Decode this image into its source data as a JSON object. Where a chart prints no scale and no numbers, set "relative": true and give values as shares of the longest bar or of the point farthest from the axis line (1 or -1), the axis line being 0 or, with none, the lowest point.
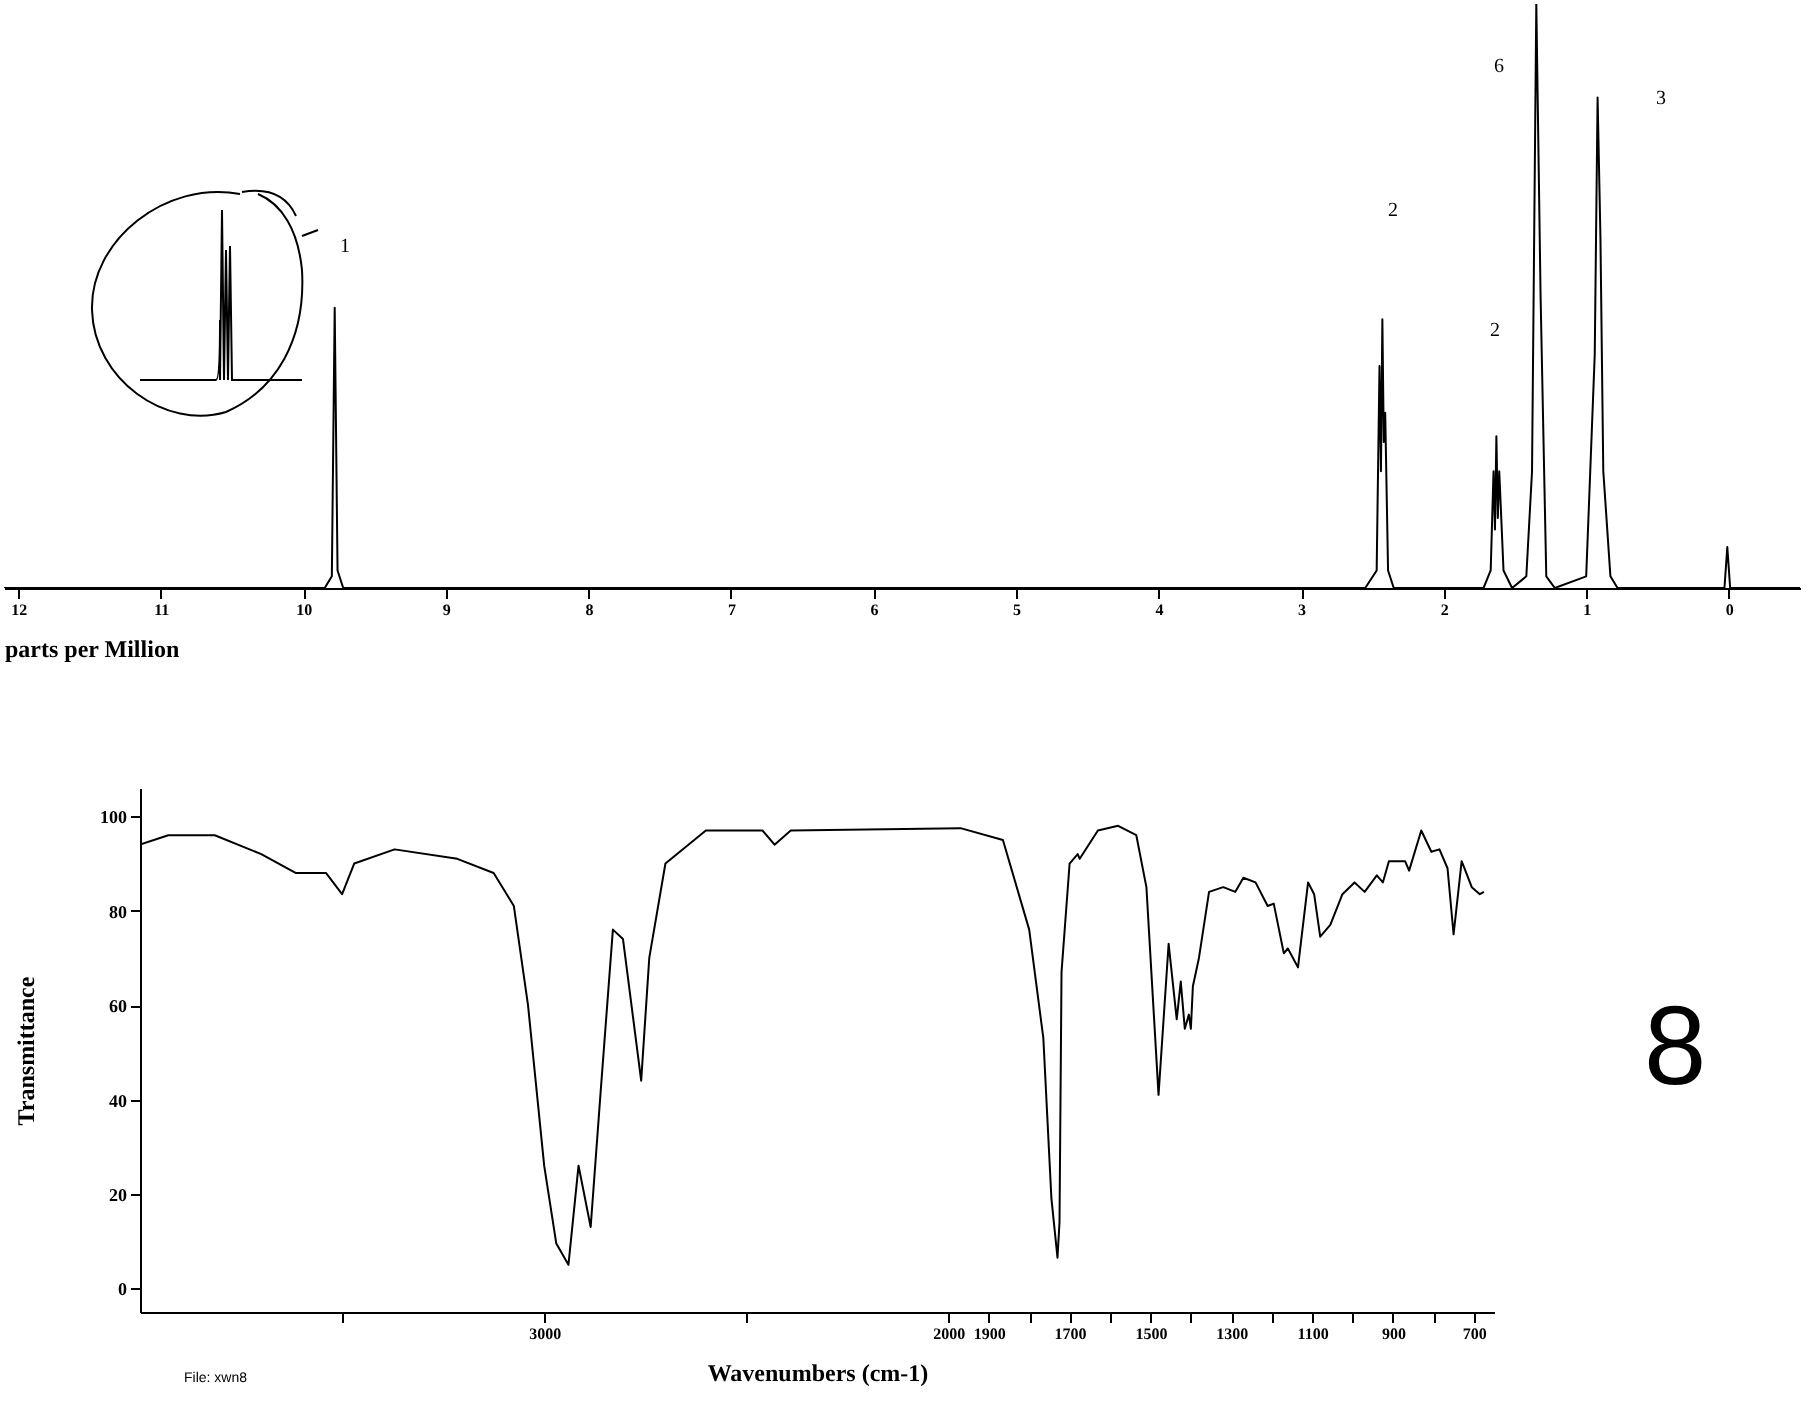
{
  "chart_data": [
    {
      "type": "line",
      "relative": true,
      "xlabel": "parts per Million",
      "xlim": [
        12.1,
        -0.5
      ],
      "xticks": [
        12,
        11,
        10,
        9,
        8,
        7,
        6,
        5,
        4,
        3,
        2,
        1,
        0
      ],
      "tick_labels": "x",
      "grid": false,
      "series": [
        {
          "color": "#000000",
          "x": [
            12.1,
            9.85,
            9.8,
            9.78,
            9.76,
            9.72,
            2.55,
            2.47,
            2.45,
            2.44,
            2.43,
            2.42,
            2.41,
            2.39,
            2.35,
            1.72,
            1.67,
            1.65,
            1.64,
            1.63,
            1.62,
            1.61,
            1.58,
            1.52,
            1.42,
            1.38,
            1.35,
            1.32,
            1.28,
            1.22,
            1.0,
            0.94,
            0.92,
            0.9,
            0.88,
            0.83,
            0.78,
            0.03,
            0.01,
            -0.01,
            -0.5
          ],
          "values": [
            0,
            0,
            0.02,
            0.48,
            0.03,
            0,
            0,
            0.03,
            0.38,
            0.2,
            0.46,
            0.25,
            0.3,
            0.03,
            0,
            0,
            0.03,
            0.2,
            0.1,
            0.26,
            0.12,
            0.2,
            0.03,
            0,
            0.02,
            0.2,
            1,
            0.5,
            0.02,
            0,
            0.02,
            0.4,
            0.84,
            0.6,
            0.2,
            0.02,
            0,
            0,
            0.07,
            0,
            0
          ]
        }
      ],
      "annotations": [
        "1",
        "2",
        "2",
        "6",
        "3"
      ]
    },
    {
      "type": "line",
      "xlabel": "Wavenumbers (cm-1)",
      "ylabel": "Transmittance",
      "xlim": [
        4000,
        650
      ],
      "ylim": [
        -5,
        106
      ],
      "yticks": [
        0,
        20,
        40,
        60,
        80,
        100
      ],
      "grid": false,
      "xticks": [
        {
          "value": 3500,
          "label": null
        },
        3000,
        {
          "value": 2500,
          "label": null
        },
        2000,
        1900,
        {
          "value": 1800,
          "label": null
        },
        1700,
        {
          "value": 1600,
          "label": null
        },
        1500,
        {
          "value": 1400,
          "label": null
        },
        1300,
        {
          "value": 1200,
          "label": null
        },
        1100,
        {
          "value": 1000,
          "label": null
        },
        900,
        {
          "value": 800,
          "label": null
        },
        700
      ],
      "series": [
        {
          "color": "#000000",
          "x": [
            4000,
            3930,
            3815,
            3700,
            3615,
            3540,
            3500,
            3470,
            3370,
            3215,
            3125,
            3075,
            3040,
            3000,
            2970,
            2940,
            2915,
            2885,
            2860,
            2830,
            2805,
            2760,
            2740,
            2700,
            2600,
            2460,
            2430,
            2390,
            1970,
            1865,
            1800,
            1765,
            1745,
            1730,
            1725,
            1720,
            1700,
            1680,
            1675,
            1630,
            1580,
            1535,
            1510,
            1480,
            1455,
            1435,
            1425,
            1415,
            1405,
            1400,
            1395,
            1380,
            1355,
            1320,
            1290,
            1270,
            1240,
            1210,
            1195,
            1170,
            1160,
            1135,
            1110,
            1095,
            1080,
            1055,
            1025,
            995,
            970,
            940,
            925,
            910,
            870,
            860,
            830,
            805,
            785,
            765,
            750,
            730,
            705,
            685,
            675
          ],
          "values": [
            94,
            96,
            96,
            92,
            88,
            88,
            83.5,
            90,
            93,
            91,
            88,
            81,
            60,
            26,
            9.5,
            5,
            26,
            13,
            42,
            76,
            74,
            44,
            70,
            90,
            97,
            97,
            94,
            97,
            97.5,
            95,
            76,
            53,
            19,
            6.5,
            14,
            67,
            90,
            92,
            91,
            97,
            98,
            96,
            85,
            41,
            73,
            57,
            65,
            55,
            58,
            55,
            64,
            70,
            84,
            85,
            84,
            87,
            86,
            81,
            81.5,
            71,
            72,
            68,
            86,
            83.5,
            74.5,
            77,
            83.5,
            86,
            84,
            87.5,
            86,
            90.5,
            90.5,
            88.5,
            97,
            92.5,
            93,
            89,
            75,
            90.5,
            85,
            83.5,
            84
          ]
        }
      ],
      "annotations": [
        "8",
        "File: xwn8"
      ]
    }
  ]
}
